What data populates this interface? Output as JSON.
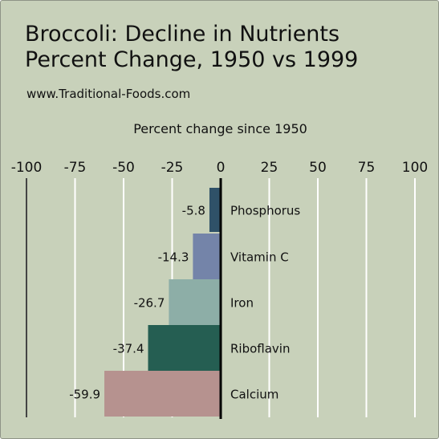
{
  "header": {
    "title_line1": "Broccoli: Decline in Nutrients",
    "title_line2": "Percent Change, 1950 vs 1999",
    "website": "www.Traditional-Foods.com"
  },
  "chart_data": {
    "type": "bar",
    "orientation": "horizontal",
    "title": "Broccoli: Decline in Nutrients Percent Change, 1950 vs 1999",
    "xlabel": "Percent change since 1950",
    "xlim": [
      -100,
      100
    ],
    "xticks": [
      -100,
      -75,
      -50,
      -25,
      0,
      25,
      50,
      75,
      100
    ],
    "xtick_labels": [
      "-100",
      "-75",
      "-50",
      "-25",
      "0",
      "25",
      "50",
      "75",
      "100"
    ],
    "x_axis_position": "top",
    "grid": true,
    "categories": [
      "Phosphorus",
      "Vitamin C",
      "Iron",
      "Riboflavin",
      "Calcium"
    ],
    "values": [
      -5.8,
      -14.3,
      -26.7,
      -37.4,
      -59.9
    ],
    "value_labels": [
      "-5.8",
      "-14.3",
      "-26.7",
      "-37.4",
      "-59.9"
    ],
    "colors": [
      "#2f5168",
      "#7484a9",
      "#8daea7",
      "#255e52",
      "#b6928f"
    ]
  },
  "style": {
    "background": "#c8d1ba",
    "gridline": "#ffffff",
    "zero_line": "#000000"
  }
}
